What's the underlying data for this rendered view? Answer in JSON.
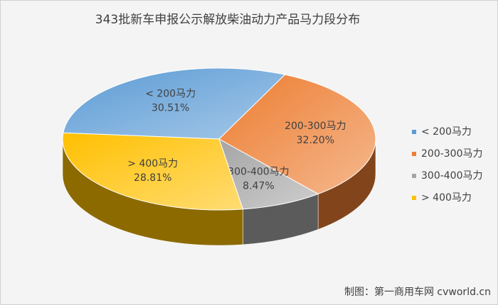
{
  "chart_data": {
    "type": "pie3d",
    "title": "343批新车申报公示解放柴油动力产品马力段分布",
    "categories": [
      "< 200马力",
      "200-300马力",
      "300-400马力",
      "> 400马力"
    ],
    "values": [
      30.51,
      32.2,
      8.47,
      28.81
    ],
    "value_labels": [
      "30.51%",
      "32.20%",
      "8.47%",
      "28.81%"
    ],
    "colors": [
      "#5b9bd5",
      "#ed7d31",
      "#a5a5a5",
      "#ffc000"
    ],
    "legend": "right",
    "source": "制图：第一商用车网 cvworld.cn"
  }
}
